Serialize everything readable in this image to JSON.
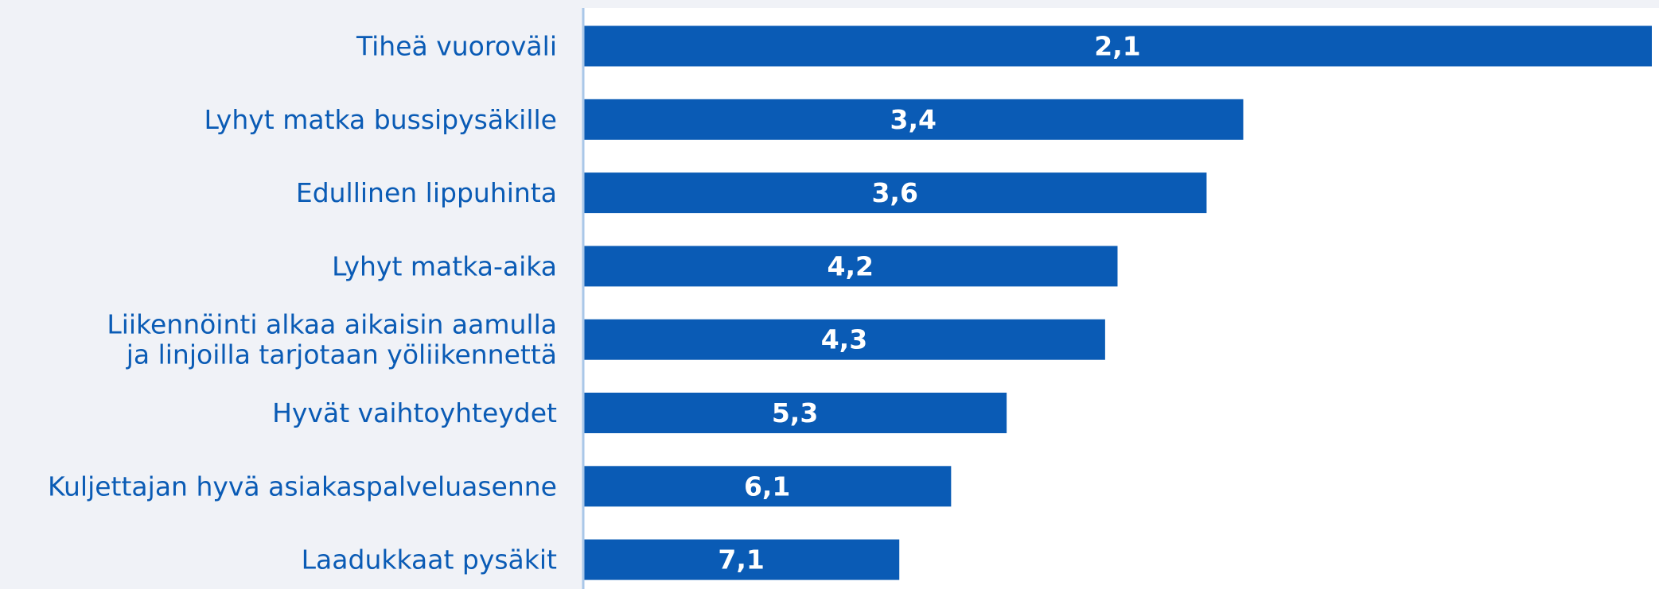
{
  "colors": {
    "background": "#f0f2f7",
    "plot_background": "#ffffff",
    "bar": "#0a5bb5",
    "axis_line": "#a9c7e8",
    "category_text": "#0a5bb5",
    "value_text": "#ffffff"
  },
  "chart_data": {
    "type": "bar",
    "orientation": "horizontal",
    "categories": [
      [
        "Tiheä vuoroväli"
      ],
      [
        "Lyhyt matka bussipysäkille"
      ],
      [
        "Edullinen lippuhinta"
      ],
      [
        "Lyhyt matka-aika"
      ],
      [
        "Liikennöinti alkaa aikaisin aamulla",
        "ja linjoilla tarjotaan yöliikennettä"
      ],
      [
        "Hyvät vaihtoyhteydet"
      ],
      [
        "Kuljettajan hyvä asiakaspalveluasenne"
      ],
      [
        "Laadukkaat pysäkit"
      ]
    ],
    "values": [
      2.1,
      3.4,
      3.6,
      4.2,
      4.3,
      5.3,
      6.1,
      7.1
    ],
    "value_labels": [
      "2,1",
      "3,4",
      "3,6",
      "4,2",
      "4,3",
      "5,3",
      "6,1",
      "7,1"
    ],
    "bar_length_scale": "inverse",
    "title": "",
    "xlabel": "",
    "ylabel": "",
    "grid": false,
    "legend": "none"
  }
}
